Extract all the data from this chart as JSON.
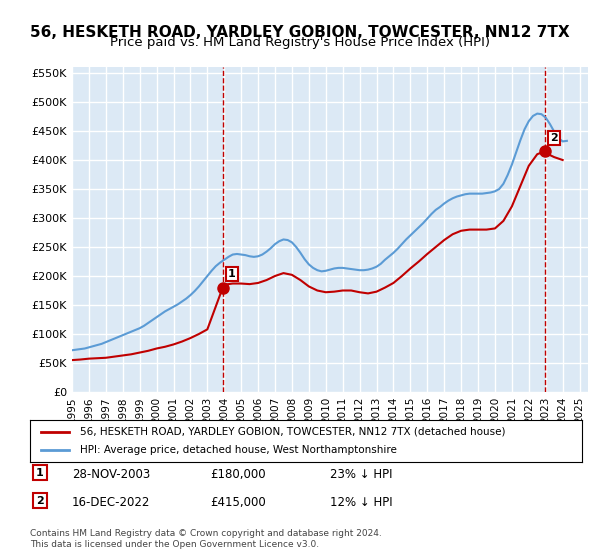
{
  "title": "56, HESKETH ROAD, YARDLEY GOBION, TOWCESTER, NN12 7TX",
  "subtitle": "Price paid vs. HM Land Registry's House Price Index (HPI)",
  "title_fontsize": 11,
  "subtitle_fontsize": 9.5,
  "background_color": "#ffffff",
  "plot_bg_color": "#dce9f5",
  "grid_color": "#ffffff",
  "ylim": [
    0,
    560000
  ],
  "yticks": [
    0,
    50000,
    100000,
    150000,
    200000,
    250000,
    300000,
    350000,
    400000,
    450000,
    500000,
    550000
  ],
  "ytick_labels": [
    "£0",
    "£50K",
    "£100K",
    "£150K",
    "£200K",
    "£250K",
    "£300K",
    "£350K",
    "£400K",
    "£450K",
    "£500K",
    "£550K"
  ],
  "xlim_start": 1995.0,
  "xlim_end": 2025.5,
  "xticks": [
    1995,
    1996,
    1997,
    1998,
    1999,
    2000,
    2001,
    2002,
    2003,
    2004,
    2005,
    2006,
    2007,
    2008,
    2009,
    2010,
    2011,
    2012,
    2013,
    2014,
    2015,
    2016,
    2017,
    2018,
    2019,
    2020,
    2021,
    2022,
    2023,
    2024,
    2025
  ],
  "hpi_color": "#5b9bd5",
  "price_color": "#c00000",
  "transaction1_date": 2003.91,
  "transaction1_price": 180000,
  "transaction2_date": 2022.96,
  "transaction2_price": 415000,
  "legend_label1": "56, HESKETH ROAD, YARDLEY GOBION, TOWCESTER, NN12 7TX (detached house)",
  "legend_label2": "HPI: Average price, detached house, West Northamptonshire",
  "annotation1_label": "1",
  "annotation2_label": "2",
  "note1_num": "1",
  "note1_date": "28-NOV-2003",
  "note1_price": "£180,000",
  "note1_hpi": "23% ↓ HPI",
  "note2_num": "2",
  "note2_date": "16-DEC-2022",
  "note2_price": "£415,000",
  "note2_hpi": "12% ↓ HPI",
  "footer": "Contains HM Land Registry data © Crown copyright and database right 2024.\nThis data is licensed under the Open Government Licence v3.0.",
  "hpi_x": [
    1995.0,
    1995.25,
    1995.5,
    1995.75,
    1996.0,
    1996.25,
    1996.5,
    1996.75,
    1997.0,
    1997.25,
    1997.5,
    1997.75,
    1998.0,
    1998.25,
    1998.5,
    1998.75,
    1999.0,
    1999.25,
    1999.5,
    1999.75,
    2000.0,
    2000.25,
    2000.5,
    2000.75,
    2001.0,
    2001.25,
    2001.5,
    2001.75,
    2002.0,
    2002.25,
    2002.5,
    2002.75,
    2003.0,
    2003.25,
    2003.5,
    2003.75,
    2004.0,
    2004.25,
    2004.5,
    2004.75,
    2005.0,
    2005.25,
    2005.5,
    2005.75,
    2006.0,
    2006.25,
    2006.5,
    2006.75,
    2007.0,
    2007.25,
    2007.5,
    2007.75,
    2008.0,
    2008.25,
    2008.5,
    2008.75,
    2009.0,
    2009.25,
    2009.5,
    2009.75,
    2010.0,
    2010.25,
    2010.5,
    2010.75,
    2011.0,
    2011.25,
    2011.5,
    2011.75,
    2012.0,
    2012.25,
    2012.5,
    2012.75,
    2013.0,
    2013.25,
    2013.5,
    2013.75,
    2014.0,
    2014.25,
    2014.5,
    2014.75,
    2015.0,
    2015.25,
    2015.5,
    2015.75,
    2016.0,
    2016.25,
    2016.5,
    2016.75,
    2017.0,
    2017.25,
    2017.5,
    2017.75,
    2018.0,
    2018.25,
    2018.5,
    2018.75,
    2019.0,
    2019.25,
    2019.5,
    2019.75,
    2020.0,
    2020.25,
    2020.5,
    2020.75,
    2021.0,
    2021.25,
    2021.5,
    2021.75,
    2022.0,
    2022.25,
    2022.5,
    2022.75,
    2023.0,
    2023.25,
    2023.5,
    2023.75,
    2024.0,
    2024.25
  ],
  "hpi_y": [
    72000,
    73000,
    74000,
    75000,
    77000,
    79000,
    81000,
    83000,
    86000,
    89000,
    92000,
    95000,
    98000,
    101000,
    104000,
    107000,
    110000,
    114000,
    119000,
    124000,
    129000,
    134000,
    139000,
    143000,
    147000,
    151000,
    156000,
    161000,
    167000,
    174000,
    182000,
    191000,
    200000,
    209000,
    217000,
    223000,
    228000,
    233000,
    237000,
    238000,
    237000,
    236000,
    234000,
    233000,
    234000,
    237000,
    242000,
    248000,
    255000,
    260000,
    263000,
    262000,
    258000,
    250000,
    240000,
    229000,
    220000,
    214000,
    210000,
    208000,
    209000,
    211000,
    213000,
    214000,
    214000,
    213000,
    212000,
    211000,
    210000,
    210000,
    211000,
    213000,
    216000,
    221000,
    228000,
    234000,
    240000,
    247000,
    255000,
    263000,
    270000,
    277000,
    284000,
    291000,
    299000,
    307000,
    314000,
    319000,
    325000,
    330000,
    334000,
    337000,
    339000,
    341000,
    342000,
    342000,
    342000,
    342000,
    343000,
    344000,
    346000,
    350000,
    359000,
    374000,
    392000,
    413000,
    434000,
    453000,
    467000,
    476000,
    480000,
    479000,
    473000,
    462000,
    449000,
    438000,
    432000,
    433000
  ],
  "price_x": [
    1995.0,
    1995.5,
    1996.0,
    1997.0,
    1997.5,
    1998.0,
    1998.5,
    1999.0,
    1999.5,
    2000.0,
    2000.5,
    2001.0,
    2001.5,
    2002.0,
    2002.5,
    2003.0,
    2003.91,
    2004.0,
    2004.5,
    2005.0,
    2005.5,
    2006.0,
    2006.5,
    2007.0,
    2007.5,
    2008.0,
    2008.5,
    2009.0,
    2009.5,
    2010.0,
    2010.5,
    2011.0,
    2011.5,
    2012.0,
    2012.5,
    2013.0,
    2013.5,
    2014.0,
    2014.5,
    2015.0,
    2015.5,
    2016.0,
    2016.5,
    2017.0,
    2017.5,
    2018.0,
    2018.5,
    2019.0,
    2019.5,
    2020.0,
    2020.5,
    2021.0,
    2021.5,
    2022.0,
    2022.5,
    2022.96,
    2023.0,
    2023.5,
    2024.0
  ],
  "price_y": [
    55000,
    56000,
    57500,
    59000,
    61000,
    63000,
    65000,
    68000,
    71000,
    75000,
    78000,
    82000,
    87000,
    93000,
    100000,
    108000,
    180000,
    185000,
    187000,
    187000,
    186000,
    188000,
    193000,
    200000,
    205000,
    202000,
    193000,
    182000,
    175000,
    172000,
    173000,
    175000,
    175000,
    172000,
    170000,
    173000,
    180000,
    188000,
    200000,
    213000,
    225000,
    238000,
    250000,
    262000,
    272000,
    278000,
    280000,
    280000,
    280000,
    282000,
    295000,
    320000,
    355000,
    390000,
    410000,
    415000,
    412000,
    405000,
    400000
  ]
}
